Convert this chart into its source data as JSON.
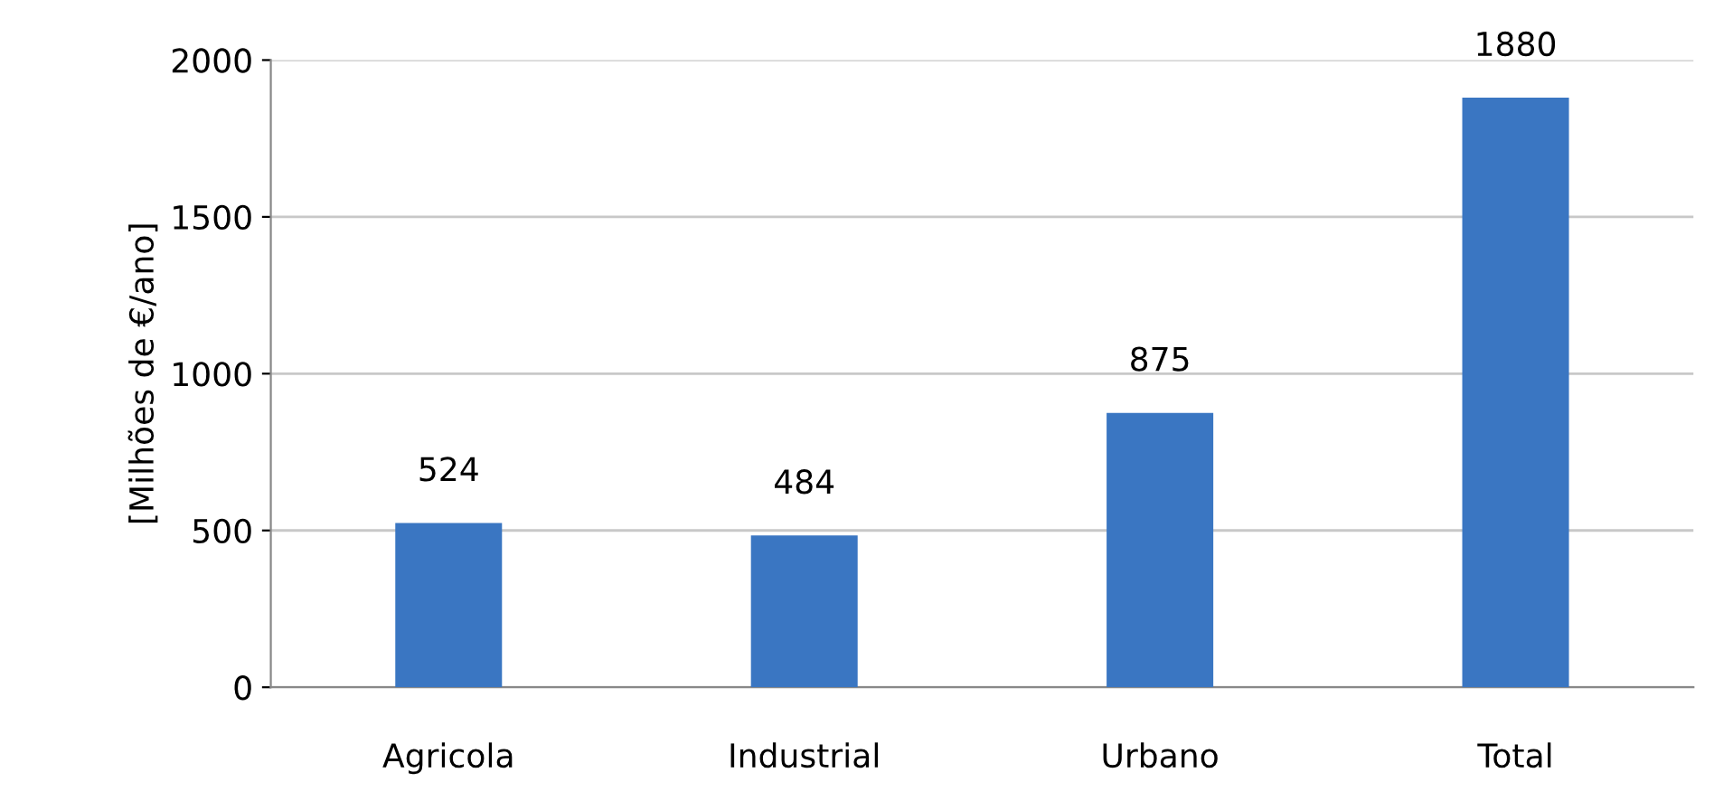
{
  "chart_data": {
    "type": "bar",
    "ylabel": "[Milhões de €/ano]",
    "categories": [
      "Agricola",
      "Industrial",
      "Urbano",
      "Total"
    ],
    "values": [
      524,
      484,
      875,
      1880
    ],
    "color": "#3a76c2",
    "ylim": [
      0,
      2000
    ],
    "yticks": [
      0,
      500,
      1000,
      1500,
      2000
    ],
    "grid": "y",
    "data_labels": true
  }
}
